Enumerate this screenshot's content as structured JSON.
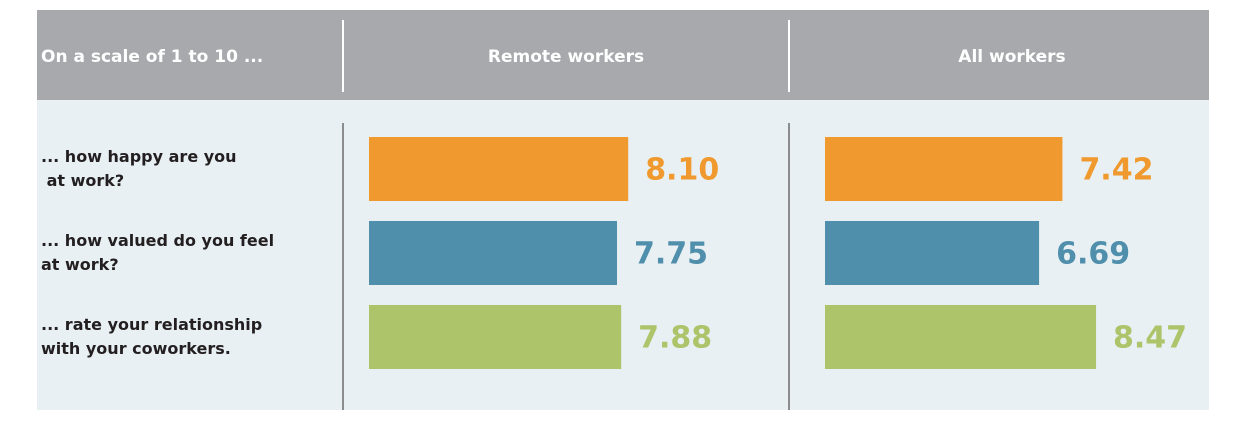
{
  "chart_data": {
    "type": "bar",
    "orientation": "horizontal",
    "corner_label": "On a scale of 1 to 10 ...",
    "categories": [
      "... how happy are you\n at work?",
      "... how valued do you feel\nat work?",
      "... rate your relationship\nwith your coworkers."
    ],
    "colors": [
      "#f0992e",
      "#4f8fab",
      "#adc46a"
    ],
    "xlim": [
      0,
      10
    ],
    "series": [
      {
        "name": "Remote workers",
        "values": [
          8.1,
          7.75,
          7.88
        ],
        "value_labels": [
          "8.10",
          "7.75",
          "7.88"
        ]
      },
      {
        "name": "All workers",
        "values": [
          7.42,
          6.69,
          8.47
        ],
        "value_labels": [
          "7.42",
          "6.69",
          "8.47"
        ]
      }
    ]
  }
}
